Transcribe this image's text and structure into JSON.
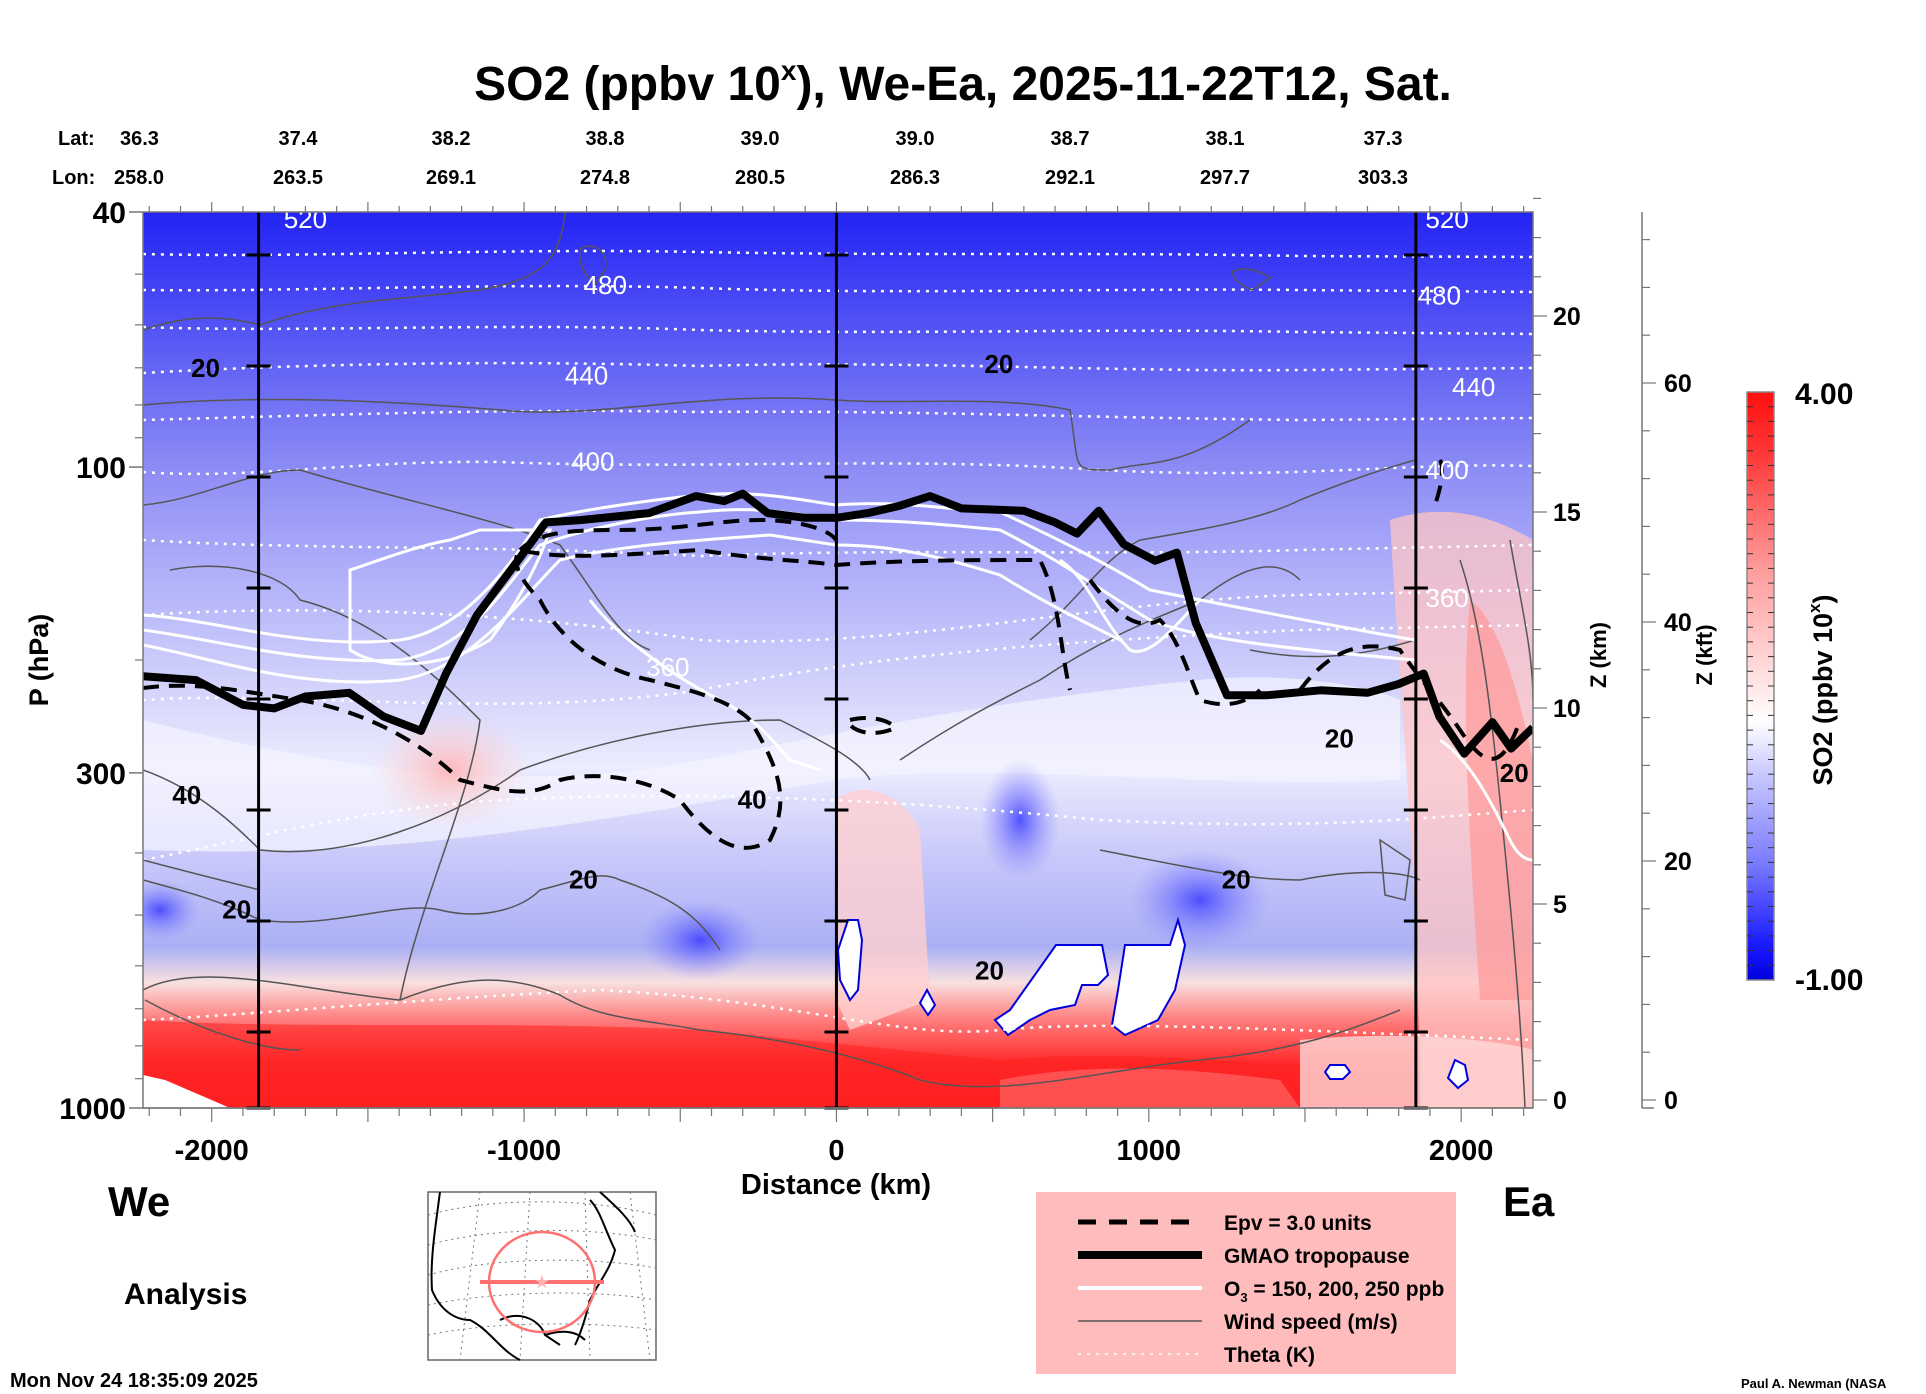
{
  "chart_data": {
    "type": "heatmap",
    "title_main": "SO2 (ppbv 10",
    "title_sup": "x",
    "title_rest": "), We-Ea, 2025-11-22T12, Sat.",
    "lat_label": "Lat:",
    "lon_label": "Lon:",
    "lat": [
      "36.3",
      "37.4",
      "38.2",
      "38.8",
      "39.0",
      "39.0",
      "38.7",
      "38.1",
      "37.3"
    ],
    "lon": [
      "258.0",
      "263.5",
      "269.1",
      "274.8",
      "280.5",
      "286.3",
      "292.1",
      "297.7",
      "303.3"
    ],
    "xlabel": "Distance (km)",
    "xlim": [
      -2220,
      2230
    ],
    "xticks": [
      -2000,
      -1000,
      0,
      1000,
      2000
    ],
    "xtick_labels": [
      "-2000",
      "-1000",
      "0",
      "1000",
      "2000"
    ],
    "ylabel": "P (hPa)",
    "ylim": [
      1000,
      40
    ],
    "yscale": "log",
    "yticks": [
      40,
      100,
      300,
      1000
    ],
    "ytick_labels": [
      "40",
      "100",
      "300",
      "1000"
    ],
    "z_km_label": "Z (km)",
    "z_km_ticks": [
      "0",
      "5",
      "10",
      "15",
      "20"
    ],
    "z_kft_label": "Z (kft)",
    "z_kft_ticks": [
      "0",
      "20",
      "40",
      "60"
    ],
    "section_markers_km": [
      -1850,
      0,
      1855
    ],
    "colorbar": {
      "label_main": "SO2 (ppbv 10",
      "label_sup": "x",
      "label_rest": ")",
      "min": -1.0,
      "max": 4.0,
      "min_label": "-1.00",
      "max_label": "4.00",
      "low_color": "#0000e0",
      "mid_color": "#ffffff",
      "high_color": "#ff1010"
    },
    "theta_labels": [
      {
        "text": "520",
        "x": -1700,
        "p": 41
      },
      {
        "text": "520",
        "x": 1955,
        "p": 41
      },
      {
        "text": "480",
        "x": -740,
        "p": 52
      },
      {
        "text": "480",
        "x": 1930,
        "p": 54
      },
      {
        "text": "440",
        "x": -800,
        "p": 72
      },
      {
        "text": "440",
        "x": 2040,
        "p": 75
      },
      {
        "text": "400",
        "x": -780,
        "p": 98
      },
      {
        "text": "400",
        "x": 1955,
        "p": 101
      },
      {
        "text": "360",
        "x": -540,
        "p": 205
      },
      {
        "text": "360",
        "x": 1955,
        "p": 160
      }
    ],
    "wind_labels": [
      {
        "text": "20",
        "x": -2020,
        "p": 70
      },
      {
        "text": "20",
        "x": 520,
        "p": 69
      },
      {
        "text": "40",
        "x": -2080,
        "p": 325
      },
      {
        "text": "40",
        "x": -270,
        "p": 330
      },
      {
        "text": "20",
        "x": -1920,
        "p": 490
      },
      {
        "text": "20",
        "x": -810,
        "p": 440
      },
      {
        "text": "20",
        "x": 1280,
        "p": 440
      },
      {
        "text": "20",
        "x": 1610,
        "p": 265
      },
      {
        "text": "20",
        "x": 490,
        "p": 610
      },
      {
        "text": "20",
        "x": 2170,
        "p": 300
      }
    ],
    "legend": {
      "items": [
        {
          "label": "Epv = 3.0 units",
          "style": "dashed"
        },
        {
          "label": "GMAO tropopause",
          "style": "thick"
        },
        {
          "label": "O",
          "sub": "3",
          "label_rest": " = 150, 200, 250 ppb",
          "style": "white"
        },
        {
          "label": "Wind speed (m/s)",
          "style": "thin"
        },
        {
          "label": "Theta (K)",
          "style": "dotted"
        }
      ],
      "background": "#ffbcbc"
    },
    "tropopause_km_hpa": [
      [
        -2220,
        212
      ],
      [
        -2050,
        215
      ],
      [
        -1900,
        235
      ],
      [
        -1800,
        238
      ],
      [
        -1700,
        228
      ],
      [
        -1560,
        225
      ],
      [
        -1450,
        245
      ],
      [
        -1330,
        258
      ],
      [
        -1250,
        210
      ],
      [
        -1150,
        170
      ],
      [
        -1020,
        140
      ],
      [
        -930,
        122
      ],
      [
        -820,
        121
      ],
      [
        -600,
        118
      ],
      [
        -450,
        111
      ],
      [
        -360,
        113
      ],
      [
        -300,
        110
      ],
      [
        -220,
        118
      ],
      [
        -100,
        120
      ],
      [
        0,
        120
      ],
      [
        100,
        118
      ],
      [
        200,
        115
      ],
      [
        300,
        111
      ],
      [
        400,
        116
      ],
      [
        600,
        117
      ],
      [
        700,
        122
      ],
      [
        770,
        127
      ],
      [
        840,
        117
      ],
      [
        920,
        132
      ],
      [
        1020,
        140
      ],
      [
        1090,
        136
      ],
      [
        1150,
        175
      ],
      [
        1250,
        227
      ],
      [
        1380,
        227
      ],
      [
        1550,
        223
      ],
      [
        1700,
        225
      ],
      [
        1800,
        218
      ],
      [
        1880,
        210
      ],
      [
        1930,
        245
      ],
      [
        2010,
        280
      ],
      [
        2100,
        250
      ],
      [
        2160,
        275
      ],
      [
        2230,
        255
      ]
    ],
    "annotations": {
      "left_dir": "We",
      "right_dir": "Ea",
      "analysis": "Analysis",
      "timestamp": "Mon Nov 24 18:35:09 2025",
      "credit": "Paul A. Newman (NASA"
    }
  }
}
